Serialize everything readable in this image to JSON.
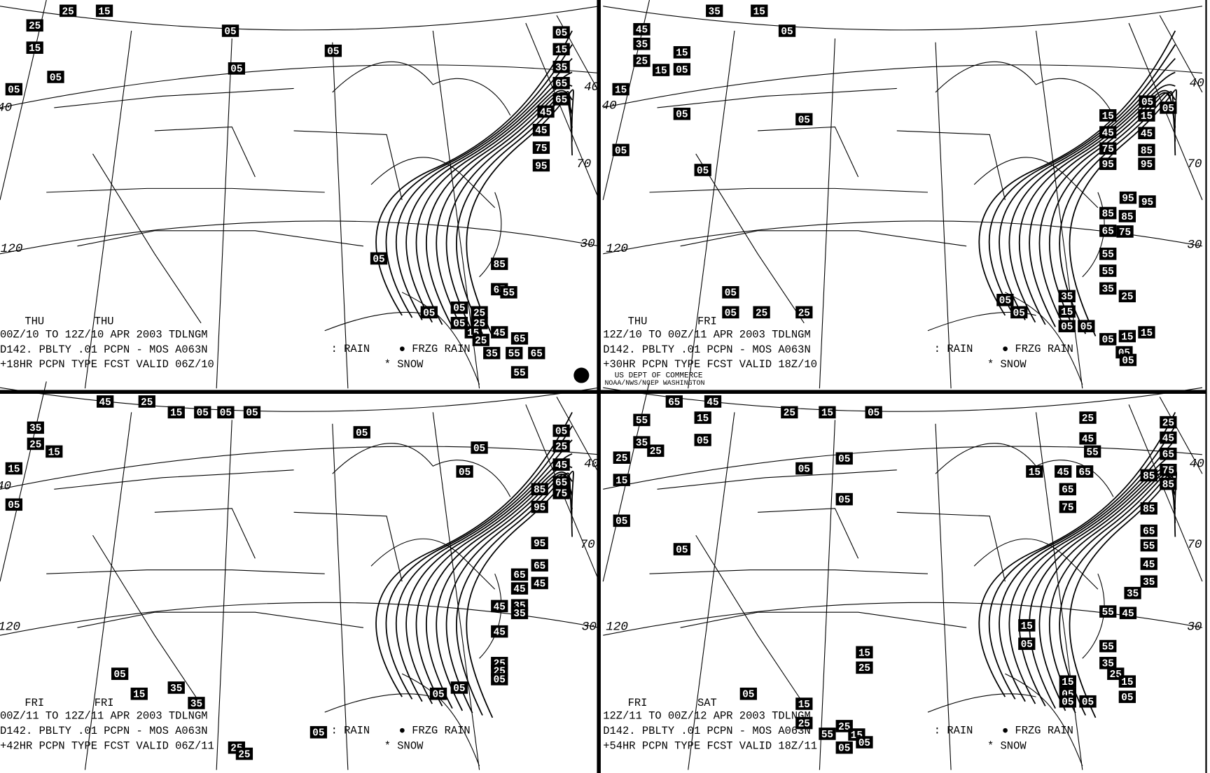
{
  "panels": [
    {
      "days": [
        "THU",
        "THU"
      ],
      "lines": [
        "00Z/10 TO 12Z/10 APR 2003  TDLNGM",
        "D142. PBLTY .01 PCPN - MOS A063N",
        "+18HR PCPN TYPE FCST VALID 06Z/10"
      ],
      "legend": {
        "rain": ": RAIN",
        "frzg_rain": "● FRZG RAIN",
        "snow": "* SNOW"
      },
      "grid_labels": [
        "40",
        "70",
        "30",
        "120",
        "40"
      ],
      "contour_labels": [
        "25",
        "15",
        "25",
        "15",
        "05",
        "05",
        "05",
        "05",
        "05",
        "05",
        "15",
        "35",
        "65",
        "65",
        "45",
        "45",
        "75",
        "95",
        "05",
        "85",
        "65",
        "55",
        "05",
        "05",
        "25",
        "05",
        "25",
        "15",
        "25",
        "45",
        "35",
        "65",
        "55",
        "65",
        "55"
      ]
    },
    {
      "days": [
        "THU",
        "FRI"
      ],
      "lines": [
        "12Z/10 TO 00Z/11 APR 2003  TDLNGM",
        "D142. PBLTY .01 PCPN - MOS A063N",
        "+30HR PCPN TYPE FCST VALID 18Z/10"
      ],
      "legend": {
        "rain": ": RAIN",
        "frzg_rain": "● FRZG RAIN",
        "snow": "* SNOW"
      },
      "grid_labels": [
        "40",
        "70",
        "30",
        "120",
        "40"
      ],
      "contour_labels": [
        "45",
        "35",
        "25",
        "15",
        "15",
        "05",
        "35",
        "15",
        "05",
        "15",
        "05",
        "05",
        "05",
        "05",
        "05",
        "05",
        "15",
        "15",
        "45",
        "45",
        "75",
        "85",
        "95",
        "95",
        "95",
        "95",
        "85",
        "85",
        "65",
        "75",
        "55",
        "55",
        "35",
        "25",
        "35",
        "15",
        "05",
        "05",
        "05",
        "15",
        "15",
        "05",
        "05",
        "05",
        "05",
        "25",
        "25",
        "05",
        "05"
      ]
    },
    {
      "days": [
        "FRI",
        "FRI"
      ],
      "lines": [
        "00Z/11 TO 12Z/11 APR 2003  TDLNGM",
        "D142. PBLTY .01 PCPN - MOS A063N",
        "+42HR PCPN TYPE FCST VALID 06Z/11"
      ],
      "legend": {
        "rain": ": RAIN",
        "frzg_rain": "● FRZG RAIN",
        "snow": "* SNOW"
      },
      "grid_labels": [
        "40",
        "70",
        "30",
        "120",
        "40"
      ],
      "contour_labels": [
        "45",
        "25",
        "15",
        "05",
        "05",
        "05",
        "35",
        "25",
        "15",
        "15",
        "05",
        "05",
        "05",
        "05",
        "05",
        "25",
        "45",
        "65",
        "75",
        "85",
        "95",
        "95",
        "65",
        "65",
        "45",
        "45",
        "45",
        "35",
        "35",
        "45",
        "25",
        "25",
        "05",
        "05",
        "05",
        "05",
        "15",
        "35",
        "35",
        "05",
        "25",
        "25"
      ]
    },
    {
      "days": [
        "FRI",
        "SAT"
      ],
      "lines": [
        "12Z/11 TO 00Z/12 APR 2003  TDLNGM",
        "D142. PBLTY .01 PCPN - MOS A063N",
        "+54HR PCPN TYPE FCST VALID 18Z/11"
      ],
      "legend": {
        "rain": ": RAIN",
        "frzg_rain": "● FRZG RAIN",
        "snow": "* SNOW"
      },
      "grid_labels": [
        "40",
        "70",
        "30",
        "120"
      ],
      "contour_labels": [
        "65",
        "45",
        "55",
        "15",
        "35",
        "25",
        "05",
        "25",
        "15",
        "05",
        "05",
        "25",
        "15",
        "05",
        "05",
        "05",
        "05",
        "25",
        "25",
        "45",
        "45",
        "55",
        "65",
        "15",
        "45",
        "65",
        "75",
        "85",
        "85",
        "65",
        "75",
        "85",
        "65",
        "55",
        "45",
        "35",
        "35",
        "55",
        "45",
        "15",
        "05",
        "55",
        "35",
        "25",
        "15",
        "15",
        "05",
        "05",
        "05",
        "05",
        "15",
        "25",
        "15",
        "25",
        "25",
        "55",
        "15",
        "05",
        "05",
        "05"
      ]
    }
  ],
  "credit": [
    "US DEPT OF COMMERCE",
    "NOAA/NWS/NCEP WASHINGTON"
  ]
}
